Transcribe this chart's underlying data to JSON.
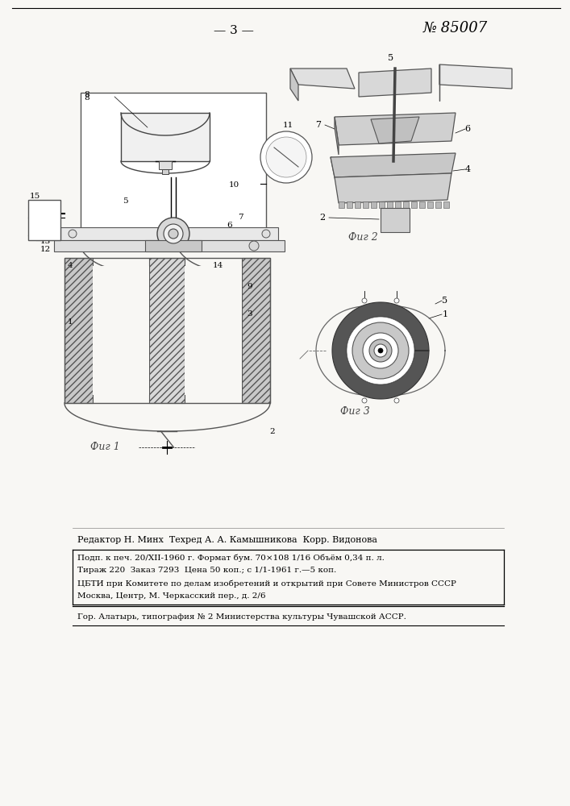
{
  "bg_color": "#f8f7f4",
  "page_number": "— 3 —",
  "patent_number": "№ 85007",
  "editor_line": "Редактор Н. Минх  Техред А. А. Камышникова  Корр. Видонова",
  "box_lines": [
    "Подп. к печ. 20/XII-1960 г. Формат бум. 70×108 1/16 Объём 0,34 п. л.",
    "Тираж 220  Заказ 7293  Цена 50 коп.; с 1/1-1961 г.—5 коп.",
    "ЦБТИ при Комитете по делам изобретений и открытий при Совете Министров СССР",
    "Москва, Центр, М. Черкасский пер., д. 2/6"
  ],
  "bottom_line": "Гор. Алатырь, типография № 2 Министерства культуры Чувашской АССР.",
  "fig1_caption": "Фиг 1",
  "fig2_caption": "Фиг 2",
  "fig3_caption": "Фиг 3"
}
